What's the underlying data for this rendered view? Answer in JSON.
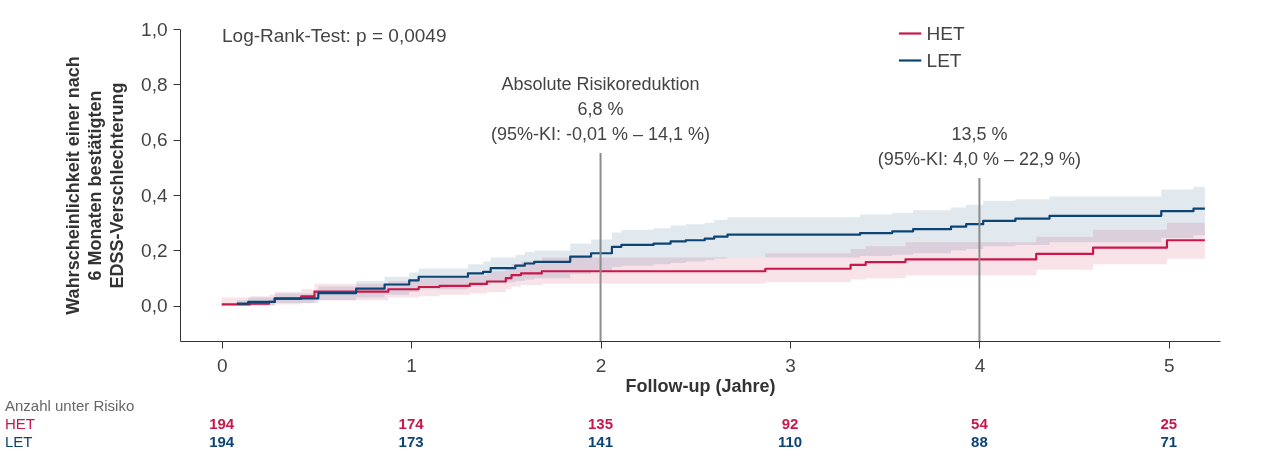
{
  "chart_data": {
    "type": "step",
    "xlabel": "Follow-up (Jahre)",
    "ylabel": "Wahrscheinlichkeit einer nach 6 Monaten bestätigten EDSS-Verschlechterung",
    "xlim": [
      -0.22,
      5.27
    ],
    "xticks": [
      0,
      1,
      2,
      3,
      4,
      5
    ],
    "ylim": [
      -0.127,
      1.0
    ],
    "yticks": [
      {
        "value": 0,
        "label": "0,0"
      },
      {
        "value": 0.2,
        "label": "0,2"
      },
      {
        "value": 0.4,
        "label": "0,4"
      },
      {
        "value": 0.6,
        "label": "0,6"
      },
      {
        "value": 0.8,
        "label": "0,8"
      },
      {
        "value": 1.0,
        "label": "1,0"
      }
    ],
    "grid": false,
    "legend": "top right",
    "marker": "none",
    "line_style": "solid",
    "series": [
      {
        "name": "HET",
        "color": "#c8174a",
        "x": [
          0,
          0.15,
          0.25,
          0.28,
          0.42,
          0.49,
          0.88,
          1.04,
          1.15,
          1.31,
          1.4,
          1.5,
          1.53,
          1.58,
          1.69,
          2.87,
          3.32,
          3.4,
          3.61,
          4.3,
          4.6,
          4.99,
          5.19
        ],
        "values": [
          0.005,
          0.008,
          0.014,
          0.025,
          0.034,
          0.051,
          0.06,
          0.068,
          0.072,
          0.079,
          0.088,
          0.1,
          0.111,
          0.117,
          0.125,
          0.134,
          0.148,
          0.158,
          0.168,
          0.188,
          0.21,
          0.237,
          0.237
        ],
        "lower": [
          0,
          0,
          0,
          0.005,
          0.01,
          0.02,
          0.03,
          0.035,
          0.04,
          0.045,
          0.05,
          0.06,
          0.07,
          0.075,
          0.08,
          0.085,
          0.095,
          0.1,
          0.11,
          0.13,
          0.15,
          0.17,
          0.17
        ],
        "upper": [
          0.03,
          0.035,
          0.04,
          0.05,
          0.06,
          0.08,
          0.09,
          0.1,
          0.105,
          0.11,
          0.125,
          0.14,
          0.15,
          0.16,
          0.175,
          0.19,
          0.205,
          0.215,
          0.23,
          0.25,
          0.275,
          0.3,
          0.3
        ]
      },
      {
        "name": "LET",
        "color": "#0c4475",
        "x": [
          0.08,
          0.14,
          0.28,
          0.51,
          0.71,
          0.86,
          0.99,
          1.04,
          1.3,
          1.38,
          1.42,
          1.55,
          1.6,
          1.65,
          1.84,
          1.95,
          2.06,
          2.11,
          2.28,
          2.37,
          2.45,
          2.55,
          2.6,
          2.67,
          3.37,
          3.54,
          3.65,
          3.85,
          3.93,
          4.02,
          4.19,
          4.37,
          4.96,
          5.13,
          5.19
        ],
        "values": [
          0.008,
          0.014,
          0.027,
          0.046,
          0.062,
          0.077,
          0.092,
          0.105,
          0.117,
          0.123,
          0.136,
          0.145,
          0.153,
          0.159,
          0.178,
          0.19,
          0.213,
          0.22,
          0.225,
          0.233,
          0.237,
          0.243,
          0.25,
          0.257,
          0.263,
          0.269,
          0.277,
          0.286,
          0.295,
          0.307,
          0.315,
          0.325,
          0.342,
          0.351,
          0.351
        ],
        "lower": [
          0,
          0.002,
          0.01,
          0.02,
          0.03,
          0.04,
          0.05,
          0.06,
          0.07,
          0.075,
          0.085,
          0.09,
          0.095,
          0.1,
          0.115,
          0.125,
          0.14,
          0.145,
          0.15,
          0.155,
          0.16,
          0.165,
          0.17,
          0.175,
          0.18,
          0.185,
          0.19,
          0.2,
          0.205,
          0.215,
          0.22,
          0.23,
          0.245,
          0.255,
          0.255
        ],
        "upper": [
          0.02,
          0.03,
          0.045,
          0.07,
          0.09,
          0.105,
          0.12,
          0.135,
          0.15,
          0.16,
          0.175,
          0.185,
          0.195,
          0.2,
          0.225,
          0.24,
          0.265,
          0.275,
          0.28,
          0.29,
          0.295,
          0.3,
          0.31,
          0.32,
          0.33,
          0.335,
          0.345,
          0.355,
          0.365,
          0.38,
          0.385,
          0.395,
          0.42,
          0.43,
          0.43
        ]
      }
    ],
    "ref_lines": [
      {
        "axis": "x",
        "value": 2,
        "color": "#8c8c8c"
      },
      {
        "axis": "x",
        "value": 4,
        "color": "#8c8c8c"
      }
    ],
    "annotations": [
      "Log-Rank-Test: p = 0,0049",
      "Absolute Risikoreduktion",
      "6,8 %",
      "(95%-KI: -0,01 % – 14,1 %)",
      "13,5 %",
      "(95%-KI: 4,0 % – 22,9 %)",
      "Anzahl unter Risiko",
      "194",
      "174",
      "135",
      "92",
      "54",
      "25",
      "194",
      "173",
      "141",
      "110",
      "88",
      "71"
    ]
  }
}
